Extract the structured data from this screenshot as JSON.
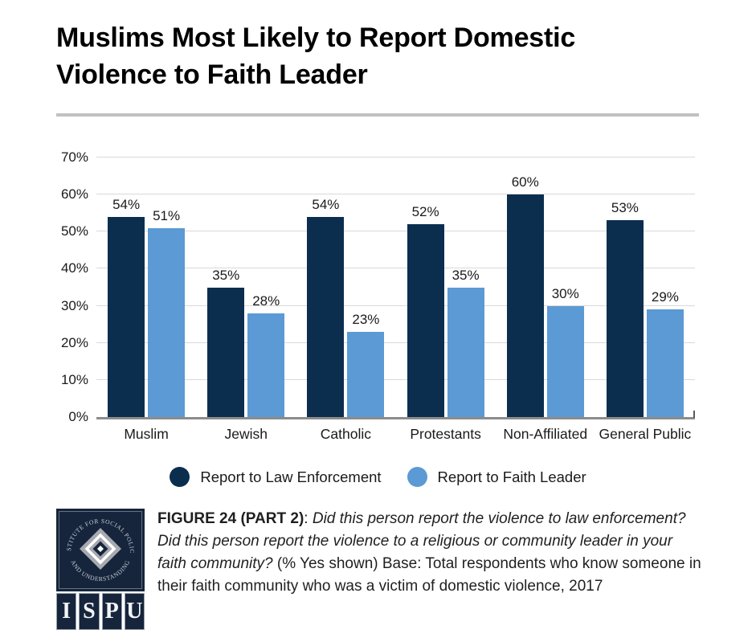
{
  "title": "Muslims Most Likely to Report Domestic Violence to Faith Leader",
  "chart_data": {
    "type": "bar",
    "title": "Muslims Most Likely to Report Domestic Violence to Faith Leader",
    "categories": [
      "Muslim",
      "Jewish",
      "Catholic",
      "Protestants",
      "Non-Affiliated",
      "General Public"
    ],
    "series": [
      {
        "name": "Report to Law Enforcement",
        "color": "#0B2E4F",
        "values": [
          54,
          35,
          54,
          52,
          60,
          53
        ]
      },
      {
        "name": "Report to Faith Leader",
        "color": "#5B9AD4",
        "values": [
          51,
          28,
          23,
          35,
          30,
          29
        ]
      }
    ],
    "value_suffix": "%",
    "xlabel": "",
    "ylabel": "",
    "ylim": [
      0,
      70
    ],
    "ytick_step": 10,
    "grid": true,
    "gridline_color": "#D9D9D9",
    "axis_color": "#8C8C8C",
    "legend_position": "bottom",
    "data_labels": true
  },
  "footer": {
    "logo": {
      "arc_top": "INSTITUTE FOR SOCIAL POLICY",
      "arc_bottom": "AND UNDERSTANDING",
      "letters": [
        "I",
        "S",
        "P",
        "U"
      ],
      "navy": "#16253B"
    },
    "caption": {
      "figure_label": "FIGURE 24 (PART 2)",
      "separator": ": ",
      "question": "Did this person report the violence to law enforcement? Did this person report the violence to a religious or community leader in your faith community?",
      "detail": " (% Yes shown) Base: Total respondents who know someone in their faith community who was a victim of domestic violence, 2017"
    }
  }
}
